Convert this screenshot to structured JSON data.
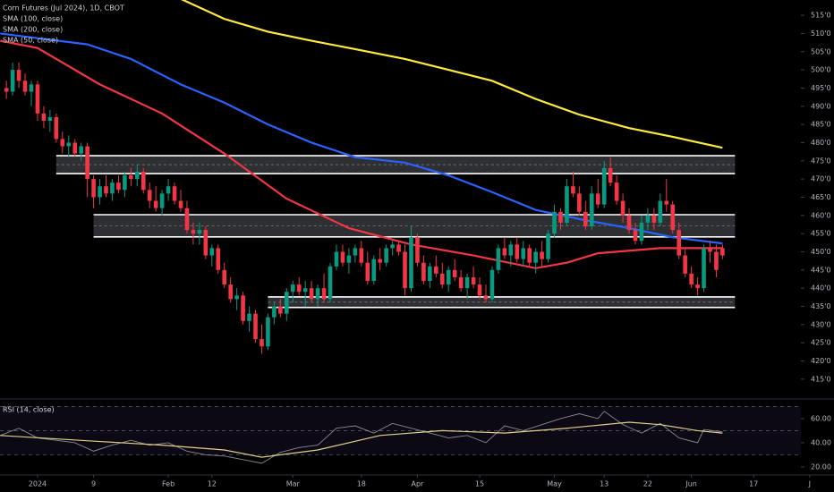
{
  "chart_data": [
    {
      "type": "candlestick",
      "title": "Corn Futures (Jul 2024), 1D, CBOT",
      "up_color": "#089981",
      "down_color": "#f23645",
      "x": [
        -5,
        -4,
        -3,
        -2,
        -1,
        0,
        1,
        2,
        3,
        4,
        5,
        6,
        7,
        8,
        9,
        10,
        11,
        12,
        13,
        14,
        15,
        16,
        17,
        18,
        19,
        20,
        21,
        22,
        23,
        24,
        25,
        26,
        27,
        28,
        29,
        30,
        31,
        32,
        33,
        34,
        35,
        36,
        37,
        38,
        39,
        40,
        41,
        42,
        43,
        44,
        45,
        46,
        47,
        48,
        49,
        50,
        51,
        52,
        53,
        54,
        55,
        56,
        57,
        58,
        59,
        60,
        61,
        62,
        63,
        64,
        65,
        66,
        67,
        68,
        69,
        70,
        71,
        72,
        73,
        74,
        75,
        76,
        77,
        78,
        79,
        80,
        81,
        82,
        83,
        84,
        85,
        86,
        87,
        88,
        89,
        90,
        91,
        92,
        93,
        94,
        95,
        96,
        97,
        98,
        99,
        100,
        101,
        102,
        103,
        104,
        105,
        106,
        107,
        108,
        109,
        110
      ],
      "open": [
        495,
        494,
        500,
        497,
        494,
        496,
        488,
        486,
        487,
        481,
        479,
        480,
        477,
        479,
        470,
        465,
        468,
        466,
        469,
        467,
        471,
        470,
        472,
        467,
        464,
        462,
        466,
        468,
        464,
        462,
        456,
        455,
        456,
        449,
        451,
        445,
        441,
        437,
        438,
        431,
        433,
        426,
        424,
        432,
        435,
        433,
        439,
        441,
        439,
        440,
        437,
        440,
        437,
        446,
        450,
        447,
        449,
        451,
        447,
        442,
        448,
        447,
        451,
        452,
        450,
        440,
        454,
        447,
        442,
        446,
        444,
        441,
        445,
        443,
        440,
        443,
        441,
        438,
        437,
        445,
        451,
        449,
        452,
        448,
        451,
        447,
        450,
        448,
        455,
        461,
        458,
        468,
        466,
        461,
        457,
        466,
        463,
        473,
        469,
        464,
        460,
        456,
        453,
        458,
        460,
        458,
        464,
        463,
        456,
        449,
        444,
        441,
        440,
        451,
        450,
        451
      ],
      "high": [
        497,
        502,
        502,
        499,
        497,
        497,
        490,
        489,
        488,
        483,
        482,
        481,
        480,
        480,
        471,
        470,
        471,
        470,
        471,
        472,
        473,
        474,
        473,
        469,
        468,
        467,
        470,
        469,
        467,
        464,
        458,
        458,
        457,
        452,
        452,
        447,
        443,
        440,
        439,
        435,
        434,
        430,
        433,
        436,
        437,
        440,
        442,
        443,
        442,
        442,
        441,
        444,
        447,
        452,
        452,
        451,
        452,
        453,
        450,
        449,
        451,
        452,
        453,
        453,
        452,
        457,
        455,
        449,
        447,
        449,
        447,
        446,
        448,
        445,
        444,
        446,
        443,
        441,
        446,
        452,
        454,
        453,
        454,
        453,
        452,
        451,
        453,
        456,
        463,
        462,
        470,
        472,
        468,
        464,
        468,
        470,
        475,
        476,
        471,
        466,
        462,
        458,
        460,
        462,
        462,
        466,
        470,
        464,
        458,
        451,
        446,
        443,
        452,
        453,
        452,
        452
      ],
      "low": [
        492,
        493,
        495,
        493,
        490,
        486,
        484,
        483,
        480,
        477,
        476,
        476,
        475,
        465,
        462,
        463,
        465,
        464,
        466,
        465,
        468,
        468,
        466,
        462,
        461,
        460,
        464,
        463,
        461,
        455,
        452,
        452,
        448,
        446,
        444,
        440,
        436,
        434,
        430,
        428,
        425,
        422,
        423,
        430,
        432,
        431,
        436,
        438,
        435,
        436,
        435,
        436,
        436,
        445,
        446,
        444,
        447,
        446,
        441,
        441,
        445,
        446,
        449,
        449,
        438,
        439,
        446,
        441,
        440,
        443,
        440,
        439,
        442,
        439,
        437,
        440,
        437,
        436,
        436,
        444,
        448,
        446,
        447,
        446,
        446,
        444,
        446,
        447,
        454,
        456,
        457,
        465,
        460,
        456,
        456,
        462,
        462,
        468,
        463,
        458,
        455,
        452,
        452,
        456,
        456,
        457,
        461,
        455,
        448,
        443,
        440,
        438,
        439,
        447,
        443,
        448
      ],
      "close": [
        494,
        500,
        497,
        494,
        496,
        488,
        486,
        487,
        481,
        479,
        480,
        477,
        479,
        470,
        465,
        468,
        466,
        469,
        467,
        471,
        470,
        472,
        467,
        464,
        462,
        466,
        468,
        464,
        462,
        456,
        455,
        456,
        449,
        451,
        445,
        441,
        437,
        438,
        431,
        433,
        426,
        424,
        432,
        435,
        433,
        439,
        441,
        439,
        440,
        437,
        440,
        437,
        446,
        450,
        447,
        449,
        451,
        447,
        442,
        448,
        447,
        451,
        452,
        450,
        440,
        454,
        447,
        442,
        446,
        444,
        441,
        445,
        443,
        440,
        443,
        441,
        438,
        437,
        445,
        451,
        449,
        452,
        448,
        451,
        447,
        450,
        448,
        455,
        461,
        458,
        468,
        466,
        461,
        457,
        466,
        463,
        473,
        469,
        464,
        460,
        456,
        453,
        458,
        460,
        458,
        464,
        463,
        456,
        449,
        444,
        441,
        440,
        451,
        450,
        445,
        449
      ],
      "overlays": [
        {
          "name": "SMA (100, close)",
          "color": "#2962ff",
          "x": [
            -6,
            8,
            15,
            23,
            30,
            37,
            44,
            51,
            59,
            66,
            73,
            80,
            87,
            95,
            102,
            110
          ],
          "values": [
            510,
            507,
            503,
            496,
            491,
            485,
            480,
            476,
            474.5,
            471,
            466.4,
            461.5,
            459,
            456.5,
            454,
            452.3
          ]
        },
        {
          "name": "SMA (200, close)",
          "color": "#ffeb3b",
          "x": [
            23,
            30,
            37,
            44,
            51,
            59,
            66,
            73,
            80,
            87,
            95,
            102,
            110
          ],
          "values": [
            519.5,
            514,
            510.5,
            508,
            505.7,
            503,
            500,
            497,
            492,
            487.7,
            484,
            481.6,
            478.6
          ]
        },
        {
          "name": "SMA (50, close)",
          "color": "#f23645",
          "x": [
            -6,
            0,
            10,
            20,
            30,
            40,
            50,
            60,
            70,
            80,
            85,
            90,
            100,
            110
          ],
          "values": [
            508,
            506,
            496,
            488,
            477,
            464.6,
            456.5,
            452,
            449,
            445.5,
            447,
            449.6,
            451,
            451
          ]
        }
      ],
      "zones": [
        {
          "top": 476.4,
          "bottom": 471.5,
          "x": [
            3,
            112
          ]
        },
        {
          "top": 460.2,
          "bottom": 454.1,
          "x": [
            9,
            112
          ]
        },
        {
          "top": 437.6,
          "bottom": 434.7,
          "x": [
            37,
            112
          ]
        }
      ],
      "xlim": [
        -6.03,
        122.3
      ],
      "xticks": [
        {
          "value": 0,
          "label": "2024"
        },
        9,
        {
          "value": 21,
          "label": "Feb"
        },
        {
          "value": 28,
          "label": "12"
        },
        {
          "value": 41,
          "label": "Mar"
        },
        {
          "value": 52,
          "label": "18"
        },
        {
          "value": 61,
          "label": "Apr"
        },
        {
          "value": 71,
          "label": "15"
        },
        {
          "value": 83,
          "label": "May"
        },
        {
          "value": 91,
          "label": "13"
        },
        {
          "value": 98,
          "label": "22"
        },
        {
          "value": 105,
          "label": "Jun"
        },
        {
          "value": 115,
          "label": "17"
        },
        {
          "value": 124,
          "label": "J"
        }
      ],
      "ylim": [
        409.8,
        519.2
      ],
      "yticks": [
        {
          "value": 515,
          "label": "515'0"
        },
        {
          "value": 510,
          "label": "510'0"
        },
        {
          "value": 505,
          "label": "505'0"
        },
        {
          "value": 500,
          "label": "500'0"
        },
        {
          "value": 495,
          "label": "495'0"
        },
        {
          "value": 490,
          "label": "490'0"
        },
        {
          "value": 485,
          "label": "485'0"
        },
        {
          "value": 480,
          "label": "480'0"
        },
        {
          "value": 475,
          "label": "475'0"
        },
        {
          "value": 470,
          "label": "470'0"
        },
        {
          "value": 465,
          "label": "465'0"
        },
        {
          "value": 460,
          "label": "460'0"
        },
        {
          "value": 455,
          "label": "455'0"
        },
        {
          "value": 450,
          "label": "450'0"
        },
        {
          "value": 445,
          "label": "445'0"
        },
        {
          "value": 440,
          "label": "440'0"
        },
        {
          "value": 435,
          "label": "435'0"
        },
        {
          "value": 430,
          "label": "430'0"
        },
        {
          "value": 425,
          "label": "425'0"
        },
        {
          "value": 420,
          "label": "420'0"
        },
        {
          "value": 415,
          "label": "415'0"
        }
      ]
    },
    {
      "type": "line",
      "title": "RSI (14, close)",
      "series": [
        {
          "color": "#b2b5be",
          "x": [
            -6,
            -3,
            0,
            3,
            6,
            9,
            12,
            15,
            18,
            21,
            24,
            27,
            30,
            33,
            36,
            39,
            42,
            45,
            48,
            51,
            54,
            57,
            60,
            63,
            66,
            69,
            72,
            75,
            78,
            81,
            84,
            87,
            90,
            91,
            94,
            97,
            100,
            103,
            106,
            107,
            110
          ],
          "values": [
            46,
            52,
            44,
            42,
            40,
            33,
            38,
            42,
            38,
            40,
            33,
            30,
            29,
            26,
            23,
            32,
            36,
            38,
            52,
            54,
            48,
            56,
            52,
            48,
            44,
            46,
            40,
            54,
            50,
            55,
            60,
            64,
            60,
            66,
            55,
            48,
            56,
            44,
            40,
            51,
            49
          ]
        },
        {
          "color": "#e0d08a",
          "x": [
            -6,
            10,
            20,
            30,
            36,
            45,
            55,
            65,
            75,
            85,
            95,
            100,
            106,
            110
          ],
          "values": [
            46,
            41,
            38,
            34,
            28,
            34,
            46,
            50,
            48,
            52,
            57,
            55,
            50,
            48
          ]
        }
      ],
      "levels": [
        70,
        50,
        30
      ],
      "band_color": "#7e57c2",
      "ylim": [
        14,
        75.5
      ],
      "yticks": [
        {
          "value": 60,
          "label": "60.00"
        },
        {
          "value": 40,
          "label": "40.00"
        },
        {
          "value": 20,
          "label": "20.00"
        }
      ]
    }
  ]
}
